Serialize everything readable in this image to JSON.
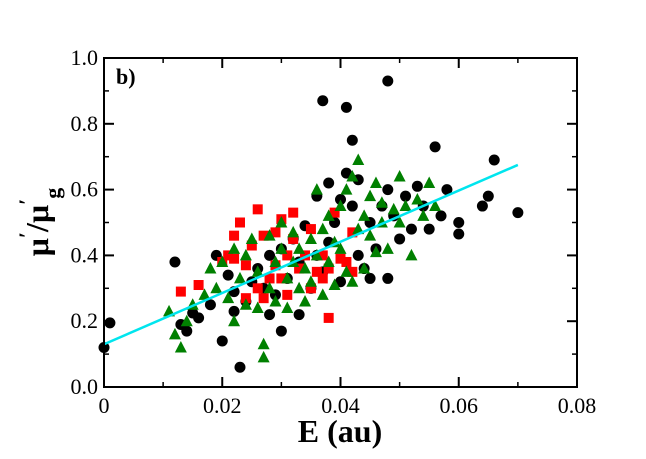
{
  "chart_data": {
    "type": "scatter",
    "panel_label": "b)",
    "xlabel": "E (au)",
    "ylabel": {
      "main": "μ",
      "prime": "′",
      "slash": "/μ",
      "prime2": "′",
      "subscript": "g"
    },
    "xlim": [
      0,
      0.08
    ],
    "ylim": [
      0,
      1.0
    ],
    "x_ticks": [
      0,
      0.02,
      0.04,
      0.06,
      0.08
    ],
    "x_tick_labels": [
      "0",
      "0.02",
      "0.04",
      "0.06",
      "0.08"
    ],
    "y_ticks": [
      0,
      0.2,
      0.4,
      0.6,
      0.8,
      1.0
    ],
    "y_tick_labels": [
      "0.0",
      "0.2",
      "0.4",
      "0.6",
      "0.8",
      "1.0"
    ],
    "grid": false,
    "colors": {
      "circle_series": "#000000",
      "square_series": "#ff0000",
      "triangle_series": "#008000",
      "fit_line": "#00e5ee"
    },
    "series": [
      {
        "marker": "circle",
        "color": "#000000",
        "points": [
          [
            0.0,
            0.12
          ],
          [
            0.001,
            0.195
          ],
          [
            0.012,
            0.38
          ],
          [
            0.013,
            0.19
          ],
          [
            0.014,
            0.17
          ],
          [
            0.015,
            0.225
          ],
          [
            0.016,
            0.21
          ],
          [
            0.018,
            0.25
          ],
          [
            0.019,
            0.4
          ],
          [
            0.02,
            0.14
          ],
          [
            0.021,
            0.34
          ],
          [
            0.022,
            0.23
          ],
          [
            0.022,
            0.29
          ],
          [
            0.023,
            0.06
          ],
          [
            0.024,
            0.26
          ],
          [
            0.025,
            0.32
          ],
          [
            0.026,
            0.36
          ],
          [
            0.027,
            0.3
          ],
          [
            0.028,
            0.4
          ],
          [
            0.028,
            0.22
          ],
          [
            0.029,
            0.28
          ],
          [
            0.03,
            0.42
          ],
          [
            0.03,
            0.17
          ],
          [
            0.031,
            0.33
          ],
          [
            0.032,
            0.45
          ],
          [
            0.033,
            0.38
          ],
          [
            0.033,
            0.22
          ],
          [
            0.034,
            0.49
          ],
          [
            0.035,
            0.3
          ],
          [
            0.036,
            0.58
          ],
          [
            0.036,
            0.4
          ],
          [
            0.037,
            0.87
          ],
          [
            0.037,
            0.35
          ],
          [
            0.038,
            0.62
          ],
          [
            0.038,
            0.44
          ],
          [
            0.039,
            0.5
          ],
          [
            0.04,
            0.32
          ],
          [
            0.04,
            0.57
          ],
          [
            0.041,
            0.85
          ],
          [
            0.041,
            0.65
          ],
          [
            0.042,
            0.75
          ],
          [
            0.042,
            0.55
          ],
          [
            0.043,
            0.63
          ],
          [
            0.043,
            0.4
          ],
          [
            0.044,
            0.36
          ],
          [
            0.045,
            0.5
          ],
          [
            0.045,
            0.33
          ],
          [
            0.046,
            0.42
          ],
          [
            0.047,
            0.55
          ],
          [
            0.048,
            0.6
          ],
          [
            0.048,
            0.93
          ],
          [
            0.048,
            0.33
          ],
          [
            0.049,
            0.52
          ],
          [
            0.05,
            0.45
          ],
          [
            0.051,
            0.58
          ],
          [
            0.052,
            0.48
          ],
          [
            0.053,
            0.61
          ],
          [
            0.054,
            0.55
          ],
          [
            0.055,
            0.48
          ],
          [
            0.056,
            0.73
          ],
          [
            0.057,
            0.52
          ],
          [
            0.058,
            0.6
          ],
          [
            0.06,
            0.5
          ],
          [
            0.06,
            0.465
          ],
          [
            0.064,
            0.55
          ],
          [
            0.065,
            0.58
          ],
          [
            0.066,
            0.69
          ],
          [
            0.07,
            0.53
          ]
        ]
      },
      {
        "marker": "square",
        "color": "#ff0000",
        "points": [
          [
            0.013,
            0.29
          ],
          [
            0.016,
            0.31
          ],
          [
            0.02,
            0.38
          ],
          [
            0.021,
            0.4
          ],
          [
            0.022,
            0.39
          ],
          [
            0.022,
            0.46
          ],
          [
            0.023,
            0.5
          ],
          [
            0.024,
            0.37
          ],
          [
            0.024,
            0.27
          ],
          [
            0.025,
            0.43
          ],
          [
            0.026,
            0.54
          ],
          [
            0.026,
            0.3
          ],
          [
            0.027,
            0.46
          ],
          [
            0.027,
            0.27
          ],
          [
            0.028,
            0.33
          ],
          [
            0.029,
            0.47
          ],
          [
            0.029,
            0.37
          ],
          [
            0.03,
            0.51
          ],
          [
            0.03,
            0.33
          ],
          [
            0.031,
            0.28
          ],
          [
            0.031,
            0.4
          ],
          [
            0.032,
            0.45
          ],
          [
            0.032,
            0.53
          ],
          [
            0.033,
            0.36
          ],
          [
            0.034,
            0.4
          ],
          [
            0.035,
            0.3
          ],
          [
            0.035,
            0.48
          ],
          [
            0.036,
            0.35
          ],
          [
            0.037,
            0.33
          ],
          [
            0.037,
            0.4
          ],
          [
            0.038,
            0.21
          ],
          [
            0.038,
            0.36
          ],
          [
            0.039,
            0.53
          ],
          [
            0.04,
            0.39
          ],
          [
            0.041,
            0.38
          ],
          [
            0.042,
            0.47
          ],
          [
            0.042,
            0.35
          ]
        ]
      },
      {
        "marker": "triangle",
        "color": "#008000",
        "points": [
          [
            0.011,
            0.23
          ],
          [
            0.012,
            0.16
          ],
          [
            0.013,
            0.12
          ],
          [
            0.014,
            0.2
          ],
          [
            0.015,
            0.25
          ],
          [
            0.017,
            0.28
          ],
          [
            0.018,
            0.36
          ],
          [
            0.019,
            0.3
          ],
          [
            0.02,
            0.38
          ],
          [
            0.021,
            0.27
          ],
          [
            0.022,
            0.2
          ],
          [
            0.022,
            0.42
          ],
          [
            0.023,
            0.33
          ],
          [
            0.024,
            0.4
          ],
          [
            0.024,
            0.25
          ],
          [
            0.025,
            0.45
          ],
          [
            0.026,
            0.35
          ],
          [
            0.026,
            0.24
          ],
          [
            0.027,
            0.13
          ],
          [
            0.027,
            0.09
          ],
          [
            0.028,
            0.3
          ],
          [
            0.028,
            0.46
          ],
          [
            0.029,
            0.38
          ],
          [
            0.029,
            0.26
          ],
          [
            0.03,
            0.42
          ],
          [
            0.03,
            0.5
          ],
          [
            0.031,
            0.33
          ],
          [
            0.031,
            0.24
          ],
          [
            0.032,
            0.38
          ],
          [
            0.032,
            0.47
          ],
          [
            0.033,
            0.3
          ],
          [
            0.033,
            0.42
          ],
          [
            0.034,
            0.36
          ],
          [
            0.034,
            0.26
          ],
          [
            0.035,
            0.45
          ],
          [
            0.035,
            0.32
          ],
          [
            0.036,
            0.6
          ],
          [
            0.036,
            0.4
          ],
          [
            0.037,
            0.48
          ],
          [
            0.037,
            0.28
          ],
          [
            0.038,
            0.38
          ],
          [
            0.038,
            0.52
          ],
          [
            0.039,
            0.44
          ],
          [
            0.039,
            0.31
          ],
          [
            0.04,
            0.55
          ],
          [
            0.04,
            0.42
          ],
          [
            0.041,
            0.6
          ],
          [
            0.041,
            0.35
          ],
          [
            0.042,
            0.64
          ],
          [
            0.042,
            0.32
          ],
          [
            0.043,
            0.69
          ],
          [
            0.043,
            0.48
          ],
          [
            0.044,
            0.52
          ],
          [
            0.044,
            0.36
          ],
          [
            0.045,
            0.58
          ],
          [
            0.045,
            0.46
          ],
          [
            0.046,
            0.62
          ],
          [
            0.046,
            0.41
          ],
          [
            0.047,
            0.5
          ],
          [
            0.047,
            0.56
          ],
          [
            0.048,
            0.42
          ],
          [
            0.049,
            0.54
          ],
          [
            0.05,
            0.5
          ],
          [
            0.05,
            0.64
          ],
          [
            0.051,
            0.55
          ],
          [
            0.052,
            0.4
          ],
          [
            0.053,
            0.57
          ],
          [
            0.054,
            0.52
          ],
          [
            0.055,
            0.62
          ],
          [
            0.056,
            0.55
          ]
        ]
      }
    ],
    "fit_line": {
      "color": "#00e5ee",
      "x": [
        0.0,
        0.07
      ],
      "y": [
        0.13,
        0.675
      ]
    }
  }
}
